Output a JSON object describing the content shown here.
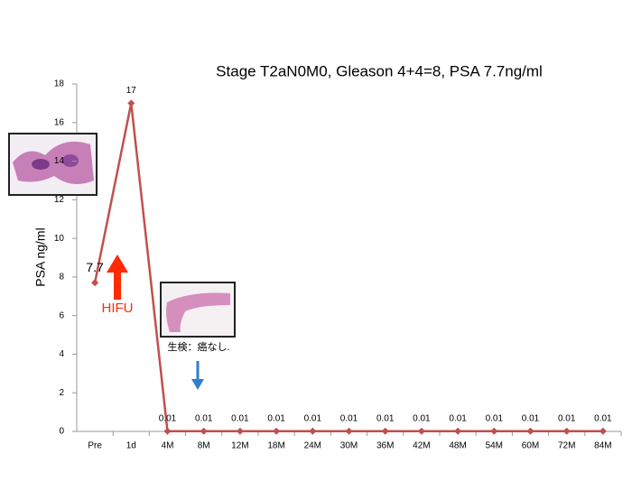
{
  "chart_data": {
    "type": "line",
    "title": "Stage T2aN0M0, Gleason 4+4=8, PSA 7.7ng/ml",
    "y_label": "PSA ng/ml",
    "categories": [
      "Pre",
      "1d",
      "4M",
      "8M",
      "12M",
      "18M",
      "24M",
      "30M",
      "36M",
      "42M",
      "48M",
      "54M",
      "60M",
      "72M",
      "84M"
    ],
    "values": [
      7.7,
      17,
      0.01,
      0.01,
      0.01,
      0.01,
      0.01,
      0.01,
      0.01,
      0.01,
      0.01,
      0.01,
      0.01,
      0.01,
      0.01
    ],
    "color": "#c0504d",
    "ylim": [
      0,
      18
    ],
    "yticks": [
      0,
      2,
      4,
      6,
      8,
      10,
      12,
      14,
      16,
      18
    ],
    "grid": false,
    "annotations": [
      "HIFU",
      "生検：癌なし."
    ]
  }
}
